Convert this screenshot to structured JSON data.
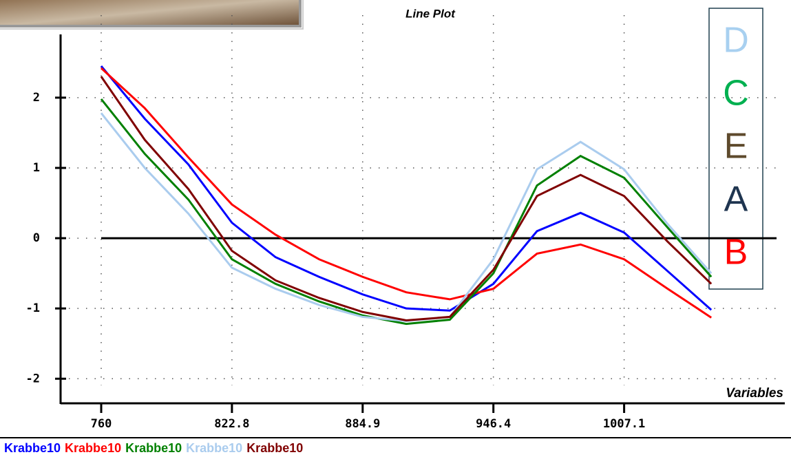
{
  "chart_data": {
    "type": "line",
    "title": "Line Plot",
    "x_label": "Variables",
    "categories": [
      "760",
      null,
      null,
      "822.8",
      null,
      null,
      "884.9",
      null,
      null,
      "946.4",
      null,
      null,
      "1007.1",
      null,
      null
    ],
    "ylim": [
      -2.35,
      2.9
    ],
    "yticks": [
      -2,
      -1,
      0,
      1,
      2
    ],
    "grid": true,
    "zero_line": true,
    "series": [
      {
        "name": "Krabbe10",
        "color": "#0000ff",
        "values": [
          2.45,
          1.7,
          1.05,
          0.22,
          -0.27,
          -0.55,
          -0.8,
          -1.0,
          -1.03,
          -0.65,
          0.1,
          0.36,
          0.08,
          -0.47,
          -1.02
        ]
      },
      {
        "name": "Krabbe10",
        "color": "#ff0000",
        "values": [
          2.42,
          1.85,
          1.15,
          0.48,
          0.05,
          -0.3,
          -0.55,
          -0.77,
          -0.87,
          -0.72,
          -0.22,
          -0.09,
          -0.3,
          -0.72,
          -1.13
        ]
      },
      {
        "name": "Krabbe10",
        "color": "#008000",
        "values": [
          1.98,
          1.2,
          0.55,
          -0.3,
          -0.65,
          -0.9,
          -1.1,
          -1.22,
          -1.16,
          -0.5,
          0.75,
          1.17,
          0.86,
          0.15,
          -0.55
        ]
      },
      {
        "name": "Krabbe10",
        "color": "#aaccee",
        "values": [
          1.78,
          1.0,
          0.35,
          -0.42,
          -0.72,
          -0.95,
          -1.12,
          -1.18,
          -1.12,
          -0.3,
          0.98,
          1.37,
          0.98,
          0.2,
          -0.5
        ]
      },
      {
        "name": "Krabbe10",
        "color": "#800000",
        "values": [
          2.3,
          1.4,
          0.7,
          -0.18,
          -0.6,
          -0.85,
          -1.05,
          -1.17,
          -1.12,
          -0.45,
          0.6,
          0.9,
          0.6,
          -0.05,
          -0.65
        ]
      }
    ],
    "annotations": [
      {
        "text": "D",
        "color": "#a8d0f0"
      },
      {
        "text": "C",
        "color": "#00b050"
      },
      {
        "text": "E",
        "color": "#5e4a2c"
      },
      {
        "text": "A",
        "color": "#1f3550"
      },
      {
        "text": "B",
        "color": "#ff0000"
      }
    ]
  }
}
